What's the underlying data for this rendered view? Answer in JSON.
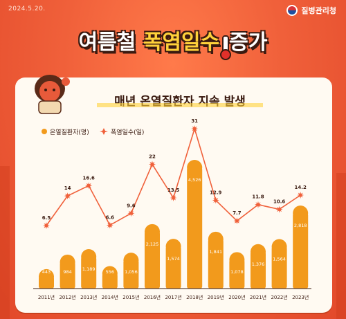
{
  "header": {
    "date": "2024.5.20.",
    "agency": "질병관리청"
  },
  "title": {
    "part1": "여름철 ",
    "part2": "폭염일수",
    "part3": "증가"
  },
  "subtitle": "매년 온열질환자 지속 발생",
  "colors": {
    "bar": "#f29a1c",
    "line": "#f0603a",
    "accent": "#ffd23a"
  },
  "chart_data": {
    "type": "bar",
    "categories": [
      "2011년",
      "2012년",
      "2013년",
      "2014년",
      "2015년",
      "2016년",
      "2017년",
      "2018년",
      "2019년",
      "2020년",
      "2021년",
      "2022년",
      "2023년"
    ],
    "series": [
      {
        "name": "온열질환자(명)",
        "type": "bar",
        "values": [
          443,
          984,
          1189,
          556,
          1056,
          2125,
          1574,
          4526,
          1841,
          1078,
          1376,
          1564,
          2818
        ]
      },
      {
        "name": "폭염일수(일)",
        "type": "line",
        "values": [
          6.5,
          14,
          16.6,
          6.6,
          9.6,
          22,
          13.5,
          31,
          12.9,
          7.7,
          11.8,
          10.6,
          14.2
        ]
      }
    ],
    "legend": "top-left",
    "grid": false
  }
}
